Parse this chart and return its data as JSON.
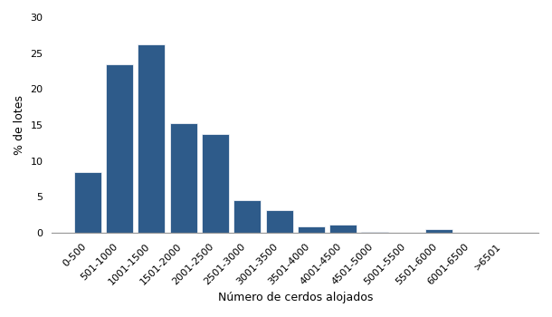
{
  "categories": [
    "0-500",
    "501-1000",
    "1001-1500",
    "1501-2000",
    "2001-2500",
    "2501-3000",
    "3001-3500",
    "3501-4000",
    "4001-4500",
    "4501-5000",
    "5001-5500",
    "5501-6000",
    "6001-6500",
    ">6501"
  ],
  "values": [
    8.5,
    23.5,
    26.2,
    15.3,
    13.7,
    4.6,
    3.1,
    0.9,
    1.2,
    0.1,
    0.0,
    0.5,
    0.05,
    0.05
  ],
  "bar_color": "#2e5b8a",
  "xlabel": "Número de cerdos alojados",
  "ylabel": "% de lotes",
  "ylim": [
    0,
    30
  ],
  "yticks": [
    0,
    5,
    10,
    15,
    20,
    25,
    30
  ],
  "background_color": "#ffffff",
  "bar_edgecolor": "#ffffff",
  "xlabel_fontsize": 9,
  "ylabel_fontsize": 9,
  "tick_fontsize": 8
}
